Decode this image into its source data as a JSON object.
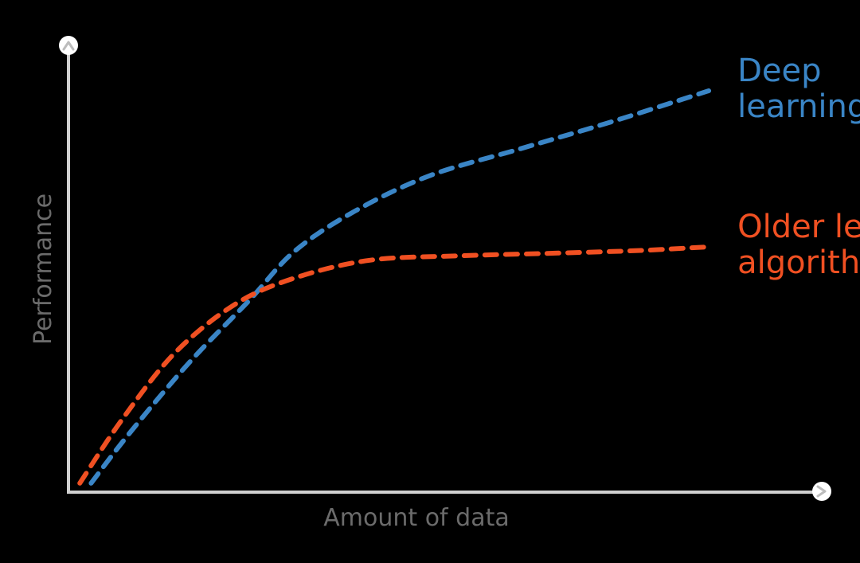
{
  "chart_data": {
    "type": "line",
    "xlabel": "Amount of data",
    "ylabel": "Performance",
    "xlim": [
      0,
      100
    ],
    "ylim": [
      0,
      100
    ],
    "grid": false,
    "legend": "inline-right",
    "axis_color": "#d0d0d0",
    "series": [
      {
        "name": "Deep learning",
        "label_lines": [
          "Deep",
          "learning"
        ],
        "color": "#3a85c6",
        "x": [
          3,
          8,
          16,
          24,
          30,
          38,
          48,
          60,
          72,
          85
        ],
        "y": [
          2,
          13,
          29,
          43,
          54,
          63,
          71,
          77,
          83,
          90
        ]
      },
      {
        "name": "Older learning algorithms",
        "label_lines": [
          "Older learning",
          "algorithms"
        ],
        "color": "#f05022",
        "x": [
          1.5,
          7,
          14,
          22,
          30,
          40,
          52,
          65,
          76,
          85
        ],
        "y": [
          2,
          16,
          31,
          42,
          48,
          52,
          53,
          53.6,
          54.2,
          55
        ]
      }
    ]
  }
}
